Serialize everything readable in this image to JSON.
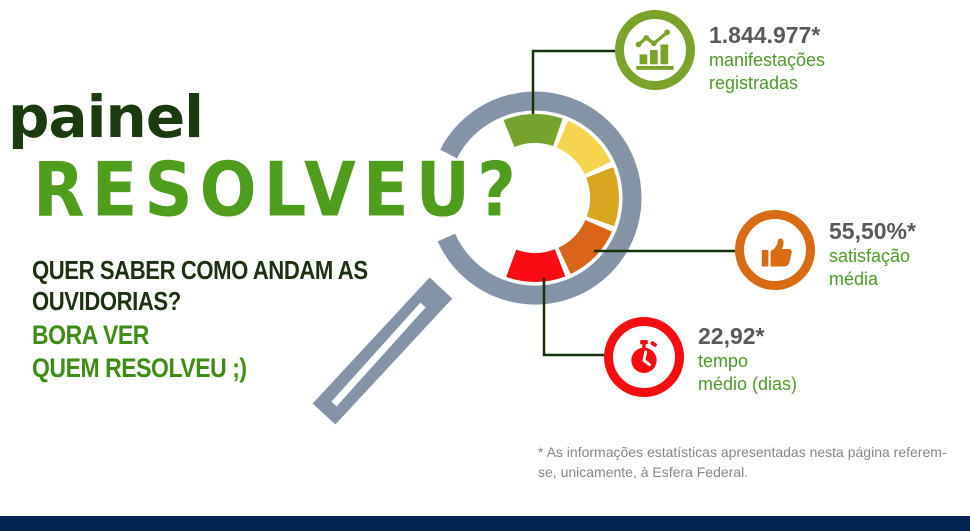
{
  "header": {
    "title_line1": "painel",
    "title_line2": "RESOLVEU?",
    "subtitle_line1": "QUER SABER COMO ANDAM AS",
    "subtitle_line2": "OUVIDORIAS?",
    "cta_line1": "BORA VER",
    "cta_line2": "QUEM RESOLVEU ;)"
  },
  "stats": [
    {
      "value": "1.844.977*",
      "label_line1": "manifestações",
      "label_line2": "registradas",
      "icon": "bar-chart-icon"
    },
    {
      "value": "55,50%*",
      "label_line1": "satisfação",
      "label_line2": "média",
      "icon": "thumbs-up-icon"
    },
    {
      "value": "22,92*",
      "label_line1": "tempo",
      "label_line2": "médio (dias)",
      "icon": "stopwatch-icon"
    }
  ],
  "footnote": {
    "line1": "* As informações estatísticas apresentadas nesta página referem-",
    "line2": "se, unicamente, à Esfera Federal."
  },
  "colors": {
    "title_dark_green": "#1c3a0f",
    "title_green": "#4f9d1d",
    "subtitle_dark": "#1e3113",
    "cta_green": "#3e8e15",
    "value_gray": "#58595b",
    "label_green": "#4c9b28",
    "stat_green": "#7ba32b",
    "stat_orange": "#d96c12",
    "stat_red": "#f60d10",
    "ring_gray": "#8593a7",
    "connector_dark_green": "#14330c",
    "footnote_gray": "#85868a",
    "bottom_bar_navy": "#032350"
  },
  "chart_data": {
    "type": "pie",
    "subtype": "partial-donut-gauge",
    "title": "painel RESOLVEU?",
    "description": "Decorative 5-segment quality gauge (green to red) inside a magnifying glass; segments are unlabeled and equally sized, open toward the left.",
    "gauge": {
      "center": [
        535,
        198
      ],
      "inner_radius": 55,
      "outer_radius": 84
    },
    "segments": [
      {
        "name": "green",
        "color": "#76a22e",
        "start_deg": 112.0,
        "end_deg": 70.8
      },
      {
        "name": "yellow",
        "color": "#f6d44d",
        "start_deg": 66.8,
        "end_deg": 25.6
      },
      {
        "name": "gold",
        "color": "#d9a41e",
        "start_deg": 21.6,
        "end_deg": -19.6
      },
      {
        "name": "orange",
        "color": "#d9641a",
        "start_deg": -23.6,
        "end_deg": -64.8
      },
      {
        "name": "red",
        "color": "#f90d12",
        "start_deg": -68.8,
        "end_deg": -110.0
      }
    ],
    "kpis": [
      {
        "value": 1844977,
        "display": "1.844.977*",
        "label": "manifestações registradas"
      },
      {
        "value": 55.5,
        "display": "55,50%*",
        "label": "satisfação média",
        "unit": "%"
      },
      {
        "value": 22.92,
        "display": "22,92*",
        "label": "tempo médio (dias)",
        "unit": "dias"
      }
    ],
    "legend_position": "none",
    "grid": false
  }
}
